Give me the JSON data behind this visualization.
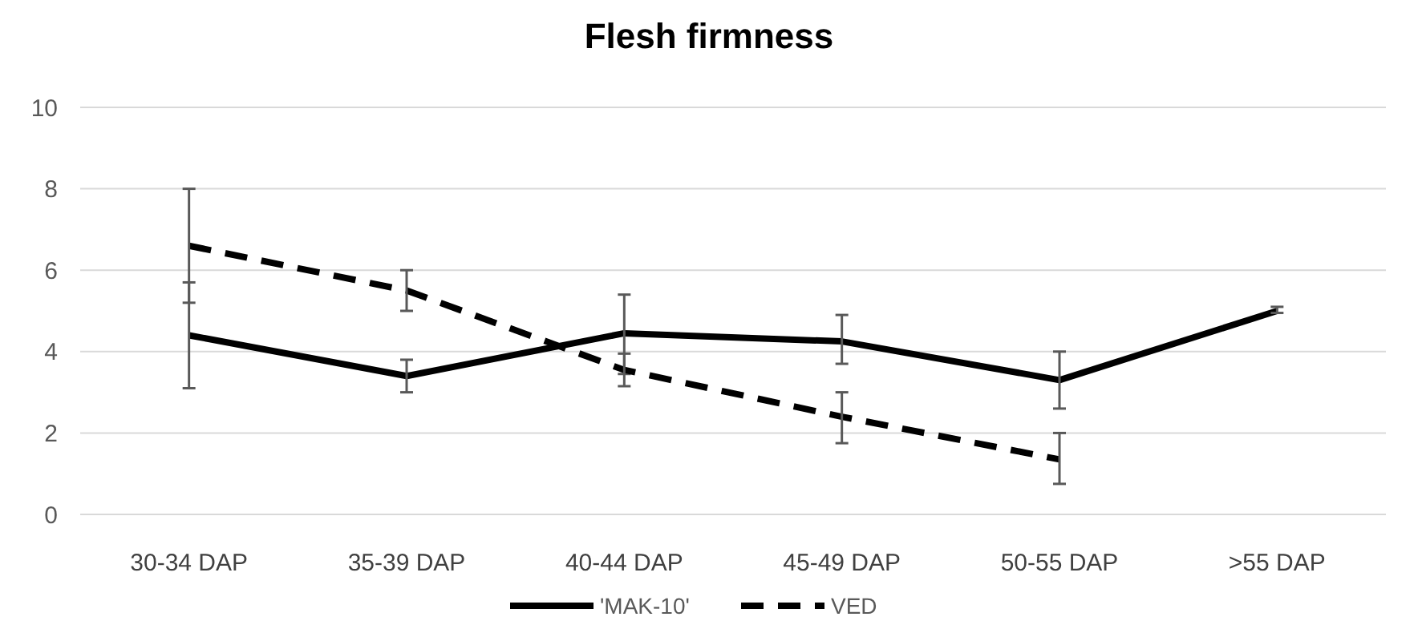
{
  "chart_data": {
    "type": "line",
    "title": "Flesh firmness",
    "categories": [
      "30-34 DAP",
      "35-39 DAP",
      "40-44 DAP",
      "45-49 DAP",
      "50-55 DAP",
      ">55 DAP"
    ],
    "series": [
      {
        "name": "'MAK-10'",
        "color": "#000000",
        "line_style": "solid",
        "values": [
          4.4,
          3.4,
          4.45,
          4.25,
          3.3,
          5.0
        ],
        "errors": [
          [
            3.1,
            5.7
          ],
          [
            3.0,
            3.8
          ],
          [
            3.45,
            5.4
          ],
          [
            3.7,
            4.9
          ],
          [
            2.6,
            4.0
          ],
          [
            4.95,
            5.1
          ]
        ]
      },
      {
        "name": "VED",
        "color": "#000000",
        "line_style": "dashed",
        "values": [
          6.6,
          5.5,
          3.55,
          2.4,
          1.35,
          null
        ],
        "errors": [
          [
            5.2,
            8.0
          ],
          [
            5.0,
            6.0
          ],
          [
            3.15,
            3.95
          ],
          [
            1.75,
            3.0
          ],
          [
            0.75,
            2.0
          ],
          null
        ]
      }
    ],
    "ylim": [
      0,
      10
    ],
    "yticks": [
      0,
      2,
      4,
      6,
      8,
      10
    ],
    "grid": "y",
    "legend": "bottom",
    "marker": "none"
  }
}
